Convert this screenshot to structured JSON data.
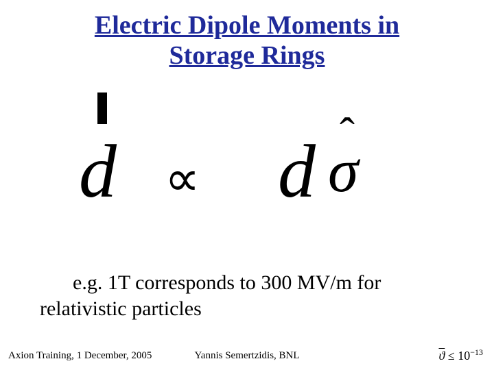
{
  "title_line1": "Electric Dipole Moments in",
  "title_line2": "Storage Rings",
  "title_color": "#1f2a9a",
  "equation": {
    "d1": "d",
    "prop": "∝",
    "d2": "d",
    "sigma": "σ",
    "hat": "ˆ"
  },
  "body_text": "e.g. 1T corresponds to 300 MV/m for relativistic particles",
  "footer": {
    "left": "Axion Training, 1 December, 2005",
    "center": "Yannis Semertzidis, BNL",
    "right_symbol": "ϑ",
    "right_rel": "≤",
    "right_val": "10",
    "right_exp": "−13"
  },
  "colors": {
    "background": "#ffffff",
    "text": "#000000",
    "title": "#1f2a9a"
  },
  "fontsizes": {
    "title": 38,
    "body": 30,
    "footer": 15,
    "equation_main": 110,
    "equation_prop": 72
  }
}
